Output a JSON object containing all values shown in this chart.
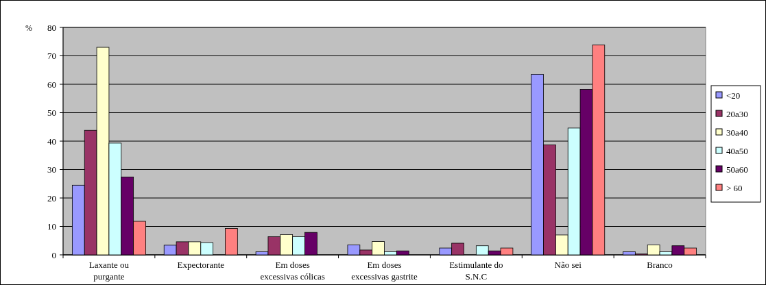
{
  "chart_data": {
    "type": "bar",
    "ylabel": "%",
    "categories": [
      "Laxante ou\npurgante",
      "Expectorante",
      "Em doses\nexcessivas cólicas",
      "Em doses\nexcessivas gastrite",
      "Estimulante do\nS.N.C",
      "Não sei",
      "Branco"
    ],
    "series": [
      {
        "name": "<20",
        "color": "#9999ff",
        "values": [
          24.5,
          3.4,
          1.1,
          3.5,
          2.4,
          63.5,
          1.1
        ]
      },
      {
        "name": "20a30",
        "color": "#993366",
        "values": [
          43.8,
          4.6,
          6.4,
          1.7,
          4.1,
          38.7,
          0.3
        ]
      },
      {
        "name": "30a40",
        "color": "#ffffcc",
        "values": [
          73,
          4.6,
          7.1,
          4.7,
          null,
          7.0,
          3.5
        ]
      },
      {
        "name": "40a50",
        "color": "#ccffff",
        "values": [
          39.3,
          4.3,
          6.4,
          1.1,
          3.2,
          44.6,
          1.1
        ]
      },
      {
        "name": "50a60",
        "color": "#660066",
        "values": [
          27.4,
          null,
          7.9,
          1.4,
          1.4,
          58.2,
          3.2
        ]
      },
      {
        "name": "> 60",
        "color": "#ff8080",
        "values": [
          11.8,
          9.3,
          null,
          null,
          2.4,
          73.8,
          2.4
        ]
      }
    ],
    "ylim": [
      0,
      80
    ],
    "yticks": [
      0,
      10,
      20,
      30,
      40,
      50,
      60,
      70,
      80
    ],
    "grid": "y",
    "legend": "right"
  }
}
